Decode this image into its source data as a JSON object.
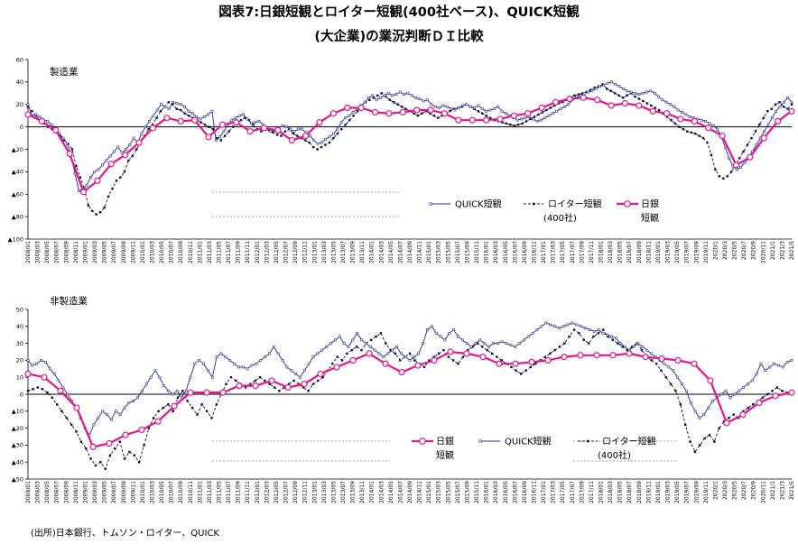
{
  "title_line1": "図表7:日銀短観とロイター短観(400社ベース)、QUICK短観",
  "title_line2": "(大企業)の業況判断ＤＩ比較",
  "source": "(出所)日本銀行、トムソン・ロイター、QUICK",
  "colors": {
    "tankan": "#e8158a",
    "quick": "#1f2f8f",
    "reuters": "#101040"
  },
  "x_ticks": [
    "2008/01",
    "2008/03",
    "2008/05",
    "2008/07",
    "2008/09",
    "2008/11",
    "2009/01",
    "2009/03",
    "2009/05",
    "2009/07",
    "2009/09",
    "2009/11",
    "2010/01",
    "2010/03",
    "2010/05",
    "2010/07",
    "2010/09",
    "2010/11",
    "2011/01",
    "2011/03",
    "2011/05",
    "2011/07",
    "2011/09",
    "2011/11",
    "2012/01",
    "2012/03",
    "2012/05",
    "2012/07",
    "2012/09",
    "2012/11",
    "2013/01",
    "2013/03",
    "2013/05",
    "2013/07",
    "2013/09",
    "2013/11",
    "2014/01",
    "2014/03",
    "2014/05",
    "2014/07",
    "2014/09",
    "2014/11",
    "2015/01",
    "2015/03",
    "2015/05",
    "2015/07",
    "2015/09",
    "2015/11",
    "2016/01",
    "2016/03",
    "2016/05",
    "2016/07",
    "2016/09",
    "2016/11",
    "2017/01",
    "2017/03",
    "2017/05",
    "2017/07",
    "2017/09",
    "2017/11",
    "2018/01",
    "2018/03",
    "2018/05",
    "2018/07",
    "2018/09",
    "2018/11",
    "2019/01",
    "2019/03",
    "2019/05",
    "2019/07",
    "2019/09",
    "2019/11",
    "2020/1",
    "2020/3",
    "2020/5",
    "2020/7",
    "2020/9",
    "2020/11",
    "2021/1",
    "2021/3",
    "2021/5"
  ],
  "chart_data": [
    {
      "type": "line",
      "panel_label": "製造業",
      "ylim": [
        -100,
        60
      ],
      "yticks": [
        60,
        40,
        20,
        0,
        -20,
        -40,
        -60,
        -80,
        -100
      ],
      "ytick_labels": [
        "60",
        "40",
        "20",
        "0",
        "▲20",
        "▲40",
        "▲60",
        "▲80",
        "▲100"
      ],
      "legend": [
        {
          "name": "QUICK短観",
          "sub": ""
        },
        {
          "name": "ロイター短観",
          "sub": "(400社)"
        },
        {
          "name": "日銀",
          "sub": "短観"
        }
      ],
      "series": [
        {
          "key": "quick",
          "values": [
            20,
            10,
            11,
            9,
            6,
            5,
            2,
            -2,
            -6,
            -10,
            -15,
            -25,
            -42,
            -57,
            -55,
            -52,
            -45,
            -40,
            -38,
            -34,
            -30,
            -26,
            -22,
            -18,
            -23,
            -20,
            -16,
            -10,
            -14,
            -6,
            0,
            5,
            10,
            15,
            20,
            18,
            16,
            22,
            21,
            20,
            18,
            14,
            12,
            9,
            7,
            9,
            11,
            14,
            -12,
            -9,
            -4,
            2,
            6,
            8,
            10,
            11,
            7,
            3,
            4,
            5,
            2,
            -2,
            -4,
            -3,
            -1,
            1,
            0,
            -2,
            -4,
            -2,
            -2,
            -5,
            -8,
            -12,
            -15,
            -14,
            -11,
            -9,
            -6,
            -2,
            4,
            8,
            10,
            13,
            16,
            19,
            22,
            26,
            28,
            24,
            26,
            28,
            30,
            28,
            29,
            31,
            29,
            30,
            28,
            26,
            25,
            23,
            24,
            20,
            18,
            17,
            19,
            18,
            16,
            15,
            17,
            19,
            20,
            18,
            17,
            19,
            16,
            14,
            15,
            16,
            18,
            14,
            12,
            10,
            8,
            6,
            7,
            8,
            9,
            7,
            5,
            6,
            8,
            10,
            12,
            14,
            16,
            18,
            20,
            24,
            26,
            28,
            30,
            31,
            32,
            34,
            36,
            37,
            39,
            40,
            38,
            36,
            34,
            32,
            31,
            30,
            29,
            30,
            31,
            32,
            30,
            27,
            24,
            22,
            20,
            18,
            15,
            13,
            11,
            9,
            8,
            7,
            6,
            5,
            3,
            1,
            -2,
            -8,
            -18,
            -28,
            -35,
            -38,
            -36,
            -32,
            -28,
            -22,
            -16,
            -10,
            -4,
            2,
            8,
            14,
            18,
            22,
            26,
            22
          ]
        },
        {
          "key": "reuters",
          "values": [
            18,
            14,
            10,
            5,
            3,
            0,
            -2,
            -5,
            -8,
            -12,
            -15,
            -20,
            -35,
            -45,
            -55,
            -70,
            -75,
            -78,
            -76,
            -72,
            -62,
            -55,
            -48,
            -45,
            -40,
            -30,
            -26,
            -20,
            -14,
            -8,
            -2,
            2,
            8,
            14,
            18,
            22,
            20,
            16,
            15,
            12,
            10,
            8,
            6,
            4,
            2,
            0,
            -2,
            -10,
            -12,
            -8,
            -4,
            0,
            3,
            6,
            8,
            6,
            2,
            -2,
            -4,
            -2,
            -3,
            -5,
            -7,
            -8,
            -4,
            -2,
            -6,
            -8,
            -10,
            -12,
            -14,
            -18,
            -20,
            -18,
            -16,
            -14,
            -10,
            -6,
            -2,
            2,
            6,
            10,
            14,
            18,
            22,
            24,
            26,
            28,
            30,
            27,
            24,
            22,
            20,
            18,
            16,
            14,
            12,
            10,
            12,
            14,
            12,
            10,
            8,
            10,
            12,
            14,
            16,
            17,
            18,
            20,
            18,
            16,
            14,
            12,
            10,
            8,
            6,
            5,
            4,
            3,
            2,
            1,
            2,
            3,
            5,
            7,
            9,
            11,
            13,
            15,
            17,
            19,
            21,
            22,
            24,
            26,
            28,
            29,
            30,
            31,
            33,
            35,
            36,
            38,
            34,
            32,
            30,
            28,
            26,
            28,
            30,
            27,
            25,
            23,
            21,
            19,
            17,
            15,
            12,
            9,
            6,
            3,
            0,
            -2,
            -4,
            -5,
            -6,
            -8,
            -10,
            -14,
            -25,
            -38,
            -44,
            -46,
            -44,
            -40,
            -34,
            -28,
            -22,
            -16,
            -10,
            -4,
            2,
            8,
            14,
            16,
            20,
            22,
            18,
            16,
            20
          ]
        },
        {
          "key": "tankan",
          "q": true,
          "values": [
            11,
            5,
            -3,
            -24,
            -58,
            -48,
            -33,
            -25,
            -14,
            -1,
            8,
            5,
            6,
            -9,
            2,
            4,
            -4,
            -1,
            -3,
            -12,
            -8,
            4,
            12,
            17,
            17,
            13,
            12,
            13,
            15,
            15,
            12,
            6,
            6,
            6,
            7,
            10,
            12,
            17,
            22,
            25,
            26,
            24,
            19,
            21,
            19,
            14,
            12,
            7,
            5,
            -1,
            -8,
            -34,
            -27,
            -10,
            5,
            14
          ]
        }
      ]
    },
    {
      "type": "line",
      "panel_label": "非製造業",
      "ylim": [
        -50,
        50
      ],
      "yticks": [
        50,
        40,
        30,
        20,
        10,
        0,
        -10,
        -20,
        -30,
        -40,
        -50
      ],
      "ytick_labels": [
        "50",
        "40",
        "30",
        "20",
        "10",
        "0",
        "▲10",
        "▲20",
        "▲30",
        "▲40",
        "▲50"
      ],
      "legend": [
        {
          "name": "日銀",
          "sub": "短観"
        },
        {
          "name": "QUICK短観",
          "sub": ""
        },
        {
          "name": "ロイター短観",
          "sub": "(400社)"
        }
      ],
      "series": [
        {
          "key": "quick",
          "values": [
            20,
            17,
            18,
            20,
            19,
            15,
            12,
            8,
            4,
            0,
            -4,
            -8,
            -14,
            -20,
            -24,
            -18,
            -14,
            -10,
            -12,
            -15,
            -10,
            -12,
            -8,
            -5,
            -4,
            -2,
            2,
            6,
            10,
            14,
            10,
            5,
            2,
            0,
            2,
            -2,
            2,
            10,
            18,
            20,
            18,
            14,
            10,
            22,
            24,
            22,
            20,
            18,
            16,
            16,
            15,
            17,
            18,
            20,
            22,
            24,
            28,
            24,
            20,
            16,
            14,
            12,
            10,
            14,
            18,
            22,
            24,
            26,
            28,
            30,
            32,
            34,
            30,
            28,
            32,
            36,
            32,
            30,
            28,
            26,
            24,
            22,
            24,
            26,
            28,
            24,
            22,
            20,
            22,
            24,
            30,
            38,
            40,
            36,
            34,
            32,
            36,
            38,
            34,
            32,
            30,
            28,
            30,
            32,
            30,
            28,
            30,
            30,
            31,
            30,
            29,
            28,
            30,
            32,
            34,
            36,
            38,
            40,
            42,
            41,
            40,
            39,
            40,
            41,
            42,
            41,
            40,
            39,
            38,
            37,
            38,
            36,
            35,
            34,
            33,
            30,
            28,
            26,
            28,
            30,
            28,
            26,
            24,
            22,
            20,
            18,
            16,
            14,
            10,
            6,
            2,
            -5,
            -10,
            -14,
            -12,
            -8,
            -4,
            -2,
            0,
            2,
            -2,
            0,
            2,
            4,
            6,
            8,
            12,
            18,
            14,
            16,
            18,
            17,
            16,
            19,
            20
          ]
        },
        {
          "key": "reuters",
          "values": [
            2,
            3,
            4,
            3,
            1,
            -2,
            -6,
            -10,
            -14,
            -18,
            -22,
            -28,
            -32,
            -38,
            -42,
            -40,
            -44,
            -36,
            -32,
            -28,
            -38,
            -34,
            -36,
            -40,
            -30,
            -20,
            -14,
            -10,
            -8,
            -6,
            -10,
            -2,
            2,
            -4,
            -8,
            -12,
            -6,
            -10,
            -14,
            -6,
            0,
            6,
            10,
            8,
            6,
            4,
            6,
            8,
            10,
            8,
            6,
            4,
            2,
            4,
            6,
            8,
            6,
            4,
            2,
            6,
            8,
            10,
            14,
            18,
            22,
            20,
            24,
            26,
            28,
            26,
            30,
            32,
            34,
            36,
            30,
            26,
            24,
            20,
            22,
            24,
            20,
            18,
            16,
            20,
            22,
            24,
            26,
            22,
            20,
            18,
            22,
            26,
            28,
            30,
            28,
            26,
            24,
            22,
            20,
            18,
            16,
            14,
            12,
            14,
            16,
            18,
            20,
            22,
            24,
            26,
            28,
            30,
            34,
            38,
            36,
            32,
            30,
            34,
            36,
            38,
            34,
            32,
            30,
            28,
            26,
            28,
            30,
            26,
            22,
            20,
            18,
            14,
            10,
            6,
            2,
            -6,
            -18,
            -28,
            -34,
            -30,
            -26,
            -24,
            -28,
            -20,
            -16,
            -14,
            -12,
            -14,
            -10,
            -8,
            -6,
            -4,
            -2,
            0,
            2,
            4,
            2,
            1,
            0
          ]
        },
        {
          "key": "tankan",
          "q": true,
          "values": [
            12,
            10,
            2,
            -8,
            -31,
            -29,
            -24,
            -21,
            -16,
            -7,
            1,
            1,
            1,
            5,
            5,
            8,
            4,
            6,
            12,
            16,
            20,
            24,
            18,
            13,
            17,
            20,
            25,
            24,
            22,
            18,
            18,
            19,
            20,
            22,
            23,
            23,
            23,
            24,
            22,
            21,
            20,
            18,
            8,
            -17,
            -12,
            -5,
            -1,
            1
          ]
        }
      ]
    }
  ]
}
